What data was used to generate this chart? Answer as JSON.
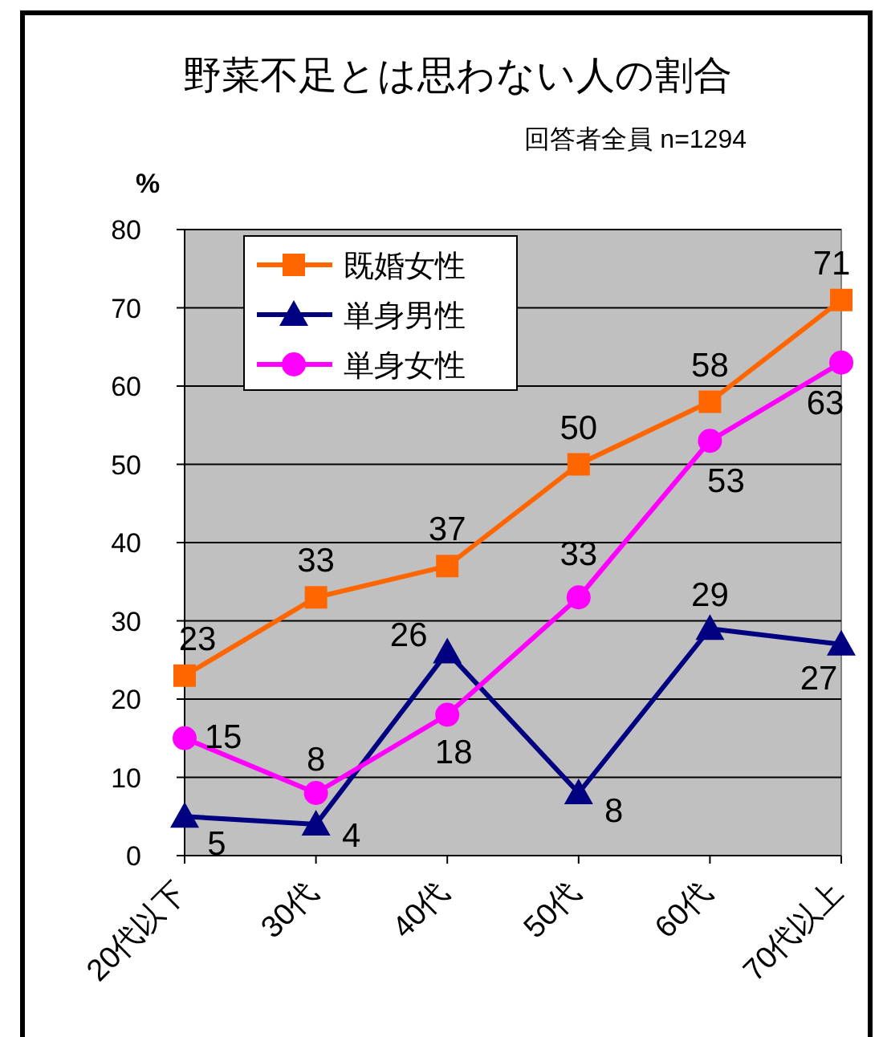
{
  "chart_data": {
    "type": "line",
    "title": "野菜不足とは思わない人の割合",
    "subtitle": "回答者全員  n=1294",
    "ylabel": "%",
    "categories": [
      "20代以下",
      "30代",
      "40代",
      "50代",
      "60代",
      "70代以上"
    ],
    "series": [
      {
        "name": "既婚女性",
        "color": "#ff6600",
        "marker": "square",
        "values": [
          23,
          33,
          37,
          50,
          58,
          71
        ]
      },
      {
        "name": "単身男性",
        "color": "#000080",
        "marker": "triangle",
        "values": [
          5,
          4,
          26,
          8,
          29,
          27
        ]
      },
      {
        "name": "単身女性",
        "color": "#ff00ff",
        "marker": "circle",
        "values": [
          15,
          8,
          18,
          33,
          53,
          63
        ]
      }
    ],
    "ylim": [
      0,
      80
    ],
    "yticks": [
      0,
      10,
      20,
      30,
      40,
      50,
      60,
      70,
      80
    ],
    "grid": "y",
    "legend": "top left",
    "data_labels": true
  }
}
